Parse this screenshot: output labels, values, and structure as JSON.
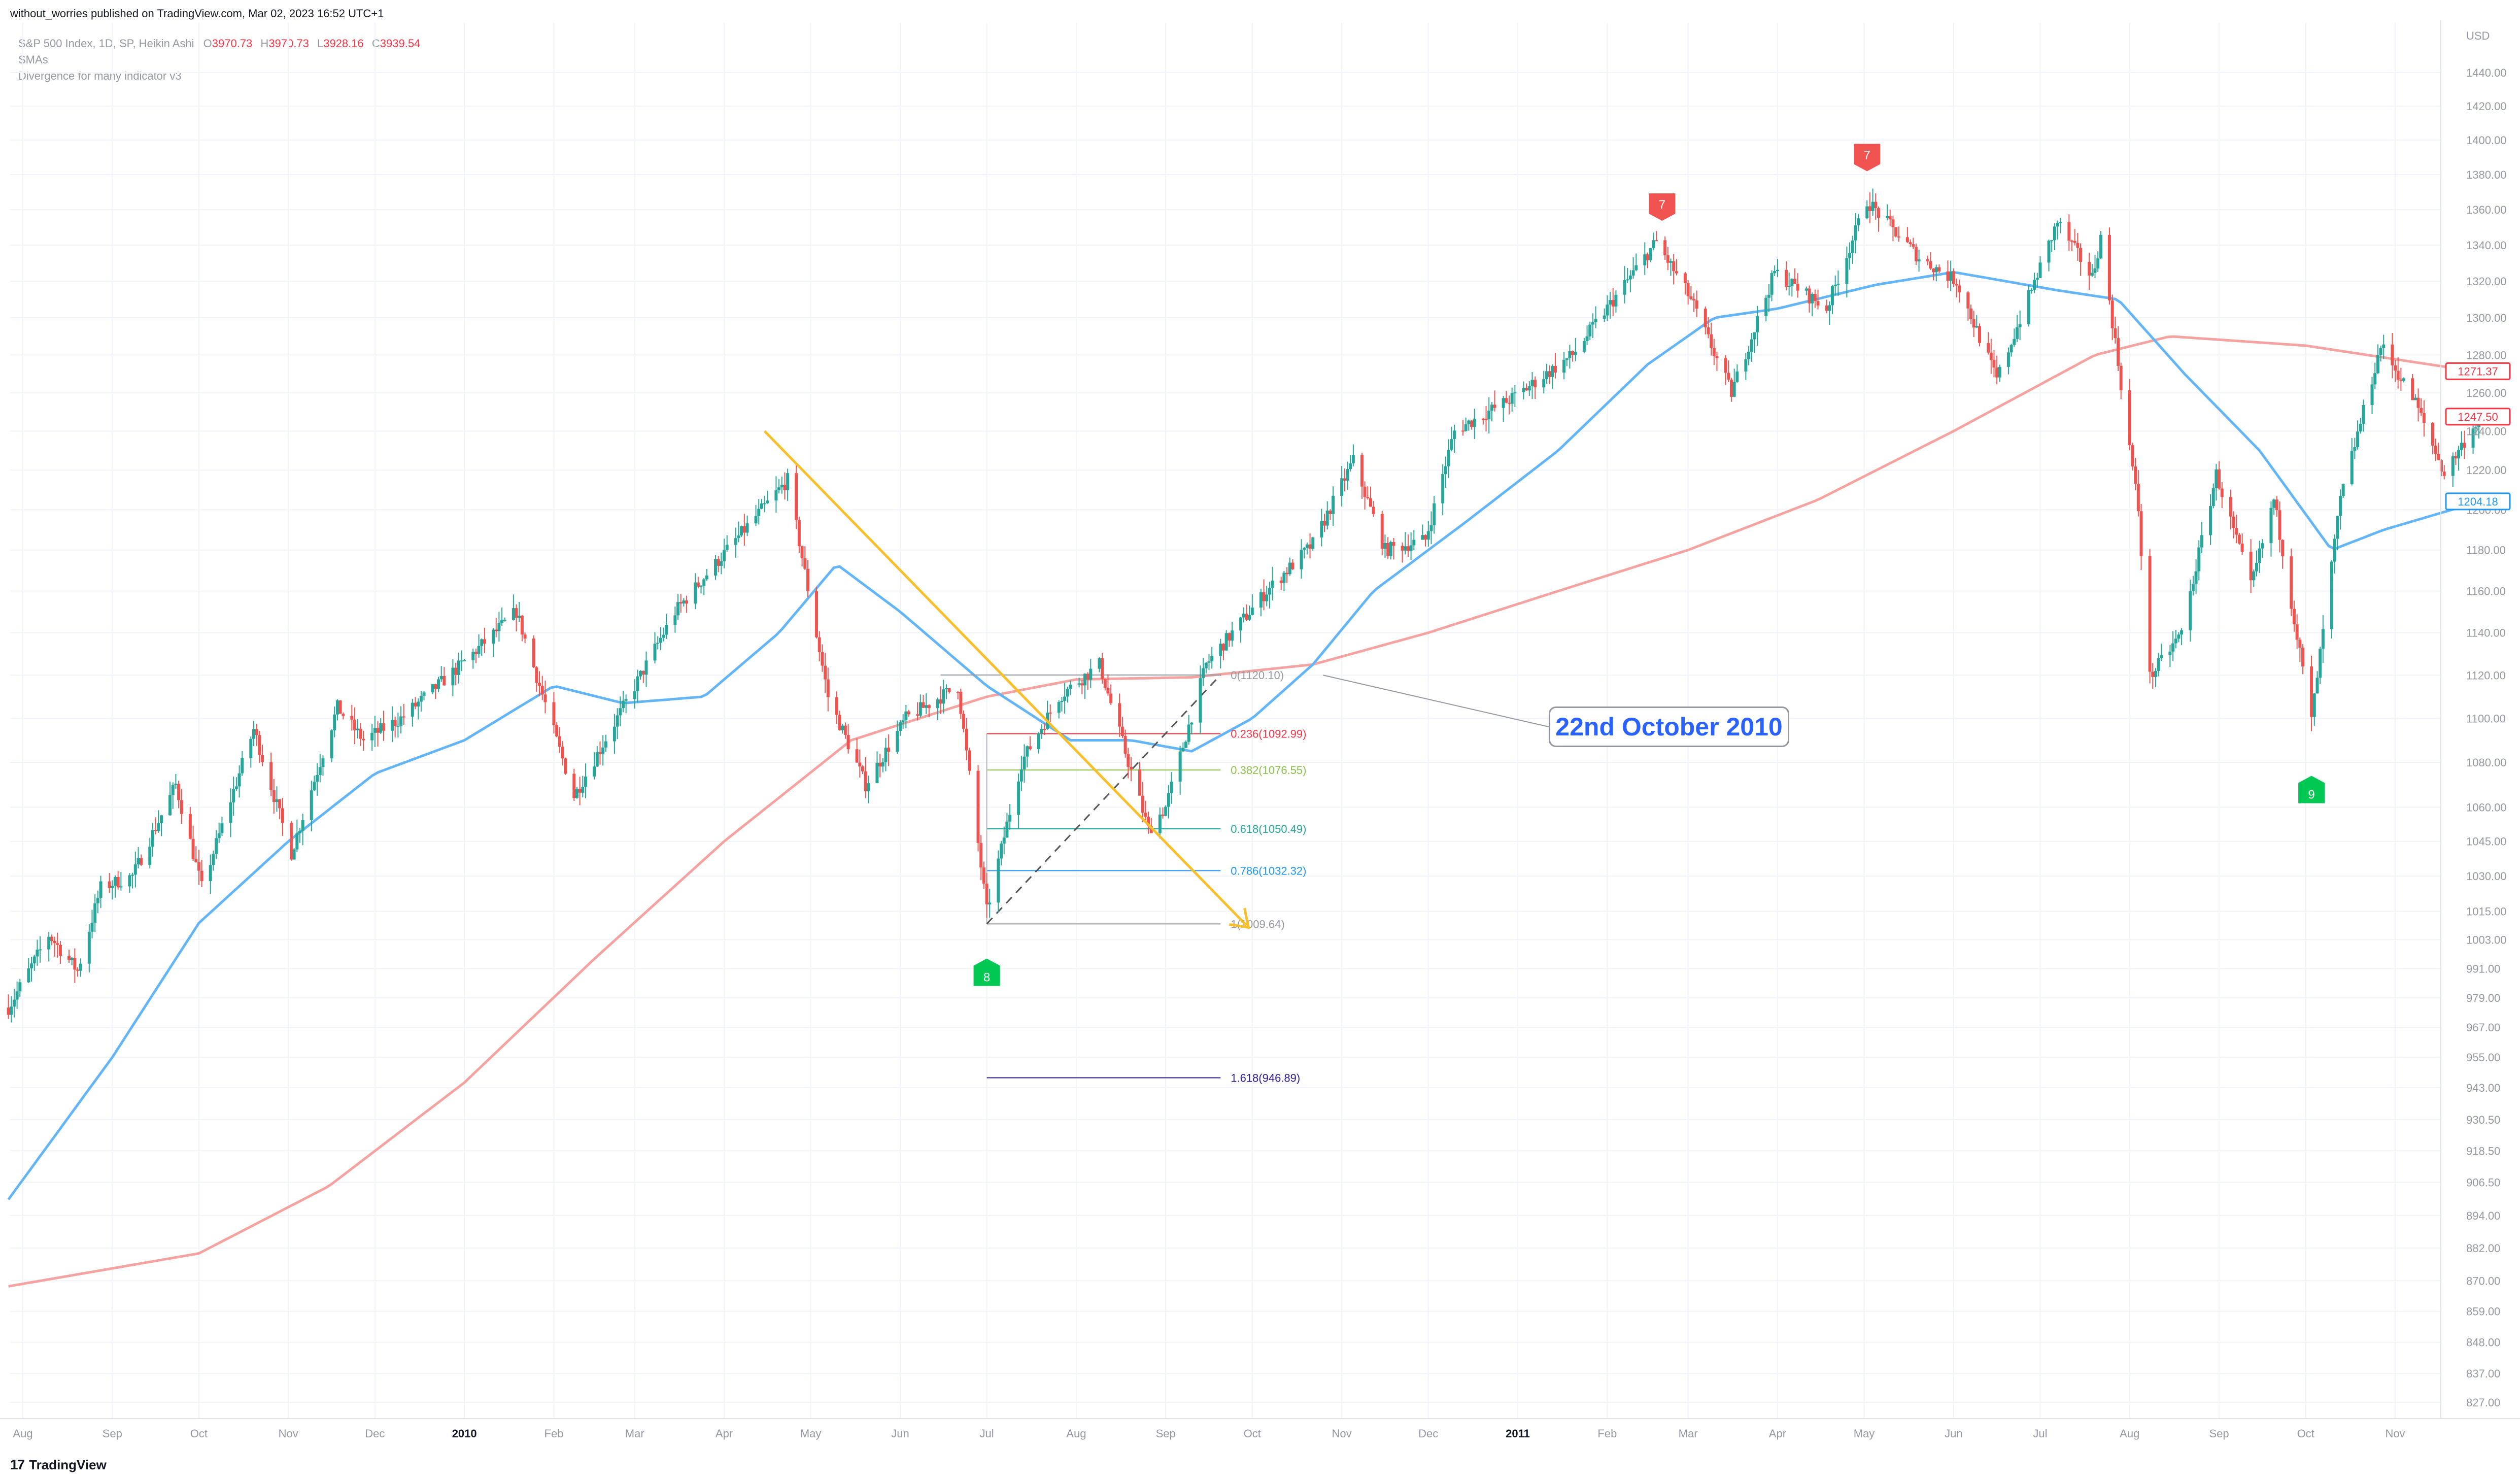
{
  "caption": "without_worries published on TradingView.com, Mar 02, 2023 16:52 UTC+1",
  "legend": {
    "symbol": "S&P 500 Index, 1D, SP, Heikin Ashi",
    "ohlc": [
      {
        "key": "O",
        "value": "3970.73"
      },
      {
        "key": "H",
        "value": "3970.73"
      },
      {
        "key": "L",
        "value": "3928.16"
      },
      {
        "key": "C",
        "value": "3939.54"
      }
    ],
    "line2": "SMAs",
    "line3": "Divergence for many indicator v3"
  },
  "brand": {
    "logo": "17",
    "name": "TradingView"
  },
  "callout": "22nd October 2010",
  "colors": {
    "up": "#26a69a",
    "down": "#ef5350",
    "sma_fast": "#64b5f6",
    "sma_slow": "#f4a3a0",
    "trendline": "#f9bf2b",
    "grid": "#f0f3fa",
    "axis_text": "#9598a1"
  },
  "chart_data": {
    "type": "candlestick",
    "title": "S&P 500 Index, 1D, SP, Heikin Ashi",
    "y_axis": {
      "unit": "USD",
      "ticks": [
        1440,
        1420,
        1400,
        1380,
        1360,
        1340,
        1320,
        1300,
        1280,
        1260,
        1240,
        1220,
        1200,
        1180,
        1160,
        1140,
        1120,
        1100,
        1080,
        1060,
        1045,
        1030,
        1015,
        1003,
        991,
        979,
        967,
        955,
        943,
        930.5,
        918.5,
        906.5,
        894,
        882,
        870,
        859,
        848,
        837,
        827
      ],
      "tick_labels": [
        "1440.00",
        "1420.00",
        "1400.00",
        "1380.00",
        "1360.00",
        "1340.00",
        "1320.00",
        "1300.00",
        "1280.00",
        "1260.00",
        "1240.00",
        "1220.00",
        "1200.00",
        "1180.00",
        "1160.00",
        "1140.00",
        "1120.00",
        "1100.00",
        "1080.00",
        "1060.00",
        "1045.00",
        "1030.00",
        "1015.00",
        "1003.00",
        "991.00",
        "979.00",
        "967.00",
        "955.00",
        "943.00",
        "930.50",
        "918.50",
        "906.50",
        "894.00",
        "882.00",
        "870.00",
        "859.00",
        "848.00",
        "837.00",
        "827.00"
      ],
      "scale": "log"
    },
    "x_axis": {
      "labels": [
        "Aug",
        "Sep",
        "Oct",
        "Nov",
        "Dec",
        "2010",
        "Feb",
        "Mar",
        "Apr",
        "May",
        "Jun",
        "Jul",
        "Aug",
        "Sep",
        "Oct",
        "Nov",
        "Dec",
        "2011",
        "Feb",
        "Mar",
        "Apr",
        "May",
        "Jun",
        "Jul",
        "Aug",
        "Sep",
        "Oct",
        "Nov"
      ],
      "bold": [
        "2010",
        "2011"
      ],
      "range": [
        "2009-08-01",
        "2011-11-30"
      ]
    },
    "price_path": [
      [
        "2009-07-27",
        975
      ],
      [
        "2009-08-10",
        1005
      ],
      [
        "2009-08-20",
        990
      ],
      [
        "2009-08-28",
        1025
      ],
      [
        "2009-09-08",
        1030
      ],
      [
        "2009-09-23",
        1070
      ],
      [
        "2009-10-02",
        1025
      ],
      [
        "2009-10-20",
        1095
      ],
      [
        "2009-11-02",
        1040
      ],
      [
        "2009-11-18",
        1105
      ],
      [
        "2009-11-27",
        1090
      ],
      [
        "2009-12-10",
        1100
      ],
      [
        "2009-12-31",
        1125
      ],
      [
        "2010-01-19",
        1150
      ],
      [
        "2010-02-08",
        1065
      ],
      [
        "2010-02-25",
        1105
      ],
      [
        "2010-03-15",
        1150
      ],
      [
        "2010-04-05",
        1185
      ],
      [
        "2010-04-23",
        1215
      ],
      [
        "2010-05-07",
        1110
      ],
      [
        "2010-05-20",
        1070
      ],
      [
        "2010-06-03",
        1100
      ],
      [
        "2010-06-21",
        1115
      ],
      [
        "2010-07-01",
        1015
      ],
      [
        "2010-07-13",
        1080
      ],
      [
        "2010-07-26",
        1110
      ],
      [
        "2010-08-09",
        1125
      ],
      [
        "2010-08-26",
        1050
      ],
      [
        "2010-09-01",
        1060
      ],
      [
        "2010-09-15",
        1125
      ],
      [
        "2010-10-06",
        1160
      ],
      [
        "2010-10-22",
        1183
      ],
      [
        "2010-11-05",
        1225
      ],
      [
        "2010-11-16",
        1180
      ],
      [
        "2010-11-30",
        1185
      ],
      [
        "2010-12-10",
        1240
      ],
      [
        "2010-12-31",
        1258
      ],
      [
        "2011-01-20",
        1280
      ],
      [
        "2011-02-18",
        1342
      ],
      [
        "2011-03-02",
        1310
      ],
      [
        "2011-03-16",
        1260
      ],
      [
        "2011-03-31",
        1325
      ],
      [
        "2011-04-18",
        1305
      ],
      [
        "2011-05-02",
        1365
      ],
      [
        "2011-05-20",
        1333
      ],
      [
        "2011-06-02",
        1320
      ],
      [
        "2011-06-16",
        1267
      ],
      [
        "2011-07-07",
        1353
      ],
      [
        "2011-07-19",
        1322
      ],
      [
        "2011-07-22",
        1344
      ],
      [
        "2011-08-04",
        1200
      ],
      [
        "2011-08-08",
        1119
      ],
      [
        "2011-08-19",
        1140
      ],
      [
        "2011-08-31",
        1218
      ],
      [
        "2011-09-12",
        1162
      ],
      [
        "2011-09-20",
        1205
      ],
      [
        "2011-10-03",
        1099
      ],
      [
        "2011-10-13",
        1205
      ],
      [
        "2011-10-27",
        1285
      ],
      [
        "2011-11-08",
        1255
      ],
      [
        "2011-11-18",
        1218
      ],
      [
        "2011-11-30",
        1247
      ]
    ],
    "sma_fast": [
      [
        "2009-07-27",
        900
      ],
      [
        "2009-09-01",
        955
      ],
      [
        "2009-10-01",
        1010
      ],
      [
        "2009-11-01",
        1045
      ],
      [
        "2009-12-01",
        1075
      ],
      [
        "2010-01-01",
        1090
      ],
      [
        "2010-02-01",
        1115
      ],
      [
        "2010-02-25",
        1107
      ],
      [
        "2010-03-25",
        1110
      ],
      [
        "2010-04-20",
        1140
      ],
      [
        "2010-05-10",
        1173
      ],
      [
        "2010-06-01",
        1150
      ],
      [
        "2010-07-01",
        1115
      ],
      [
        "2010-07-30",
        1090
      ],
      [
        "2010-08-20",
        1090
      ],
      [
        "2010-09-10",
        1085
      ],
      [
        "2010-10-01",
        1100
      ],
      [
        "2010-10-22",
        1125
      ],
      [
        "2010-11-12",
        1160
      ],
      [
        "2010-12-15",
        1195
      ],
      [
        "2011-01-15",
        1230
      ],
      [
        "2011-02-15",
        1275
      ],
      [
        "2011-03-10",
        1300
      ],
      [
        "2011-04-01",
        1305
      ],
      [
        "2011-05-05",
        1318
      ],
      [
        "2011-06-01",
        1325
      ],
      [
        "2011-07-07",
        1315
      ],
      [
        "2011-07-28",
        1310
      ],
      [
        "2011-08-20",
        1270
      ],
      [
        "2011-09-15",
        1230
      ],
      [
        "2011-10-10",
        1180
      ],
      [
        "2011-10-28",
        1190
      ],
      [
        "2011-11-30",
        1204
      ]
    ],
    "sma_slow": [
      [
        "2009-07-27",
        868
      ],
      [
        "2009-10-01",
        880
      ],
      [
        "2009-11-15",
        905
      ],
      [
        "2010-01-01",
        945
      ],
      [
        "2010-02-15",
        995
      ],
      [
        "2010-04-01",
        1045
      ],
      [
        "2010-05-15",
        1090
      ],
      [
        "2010-07-01",
        1110
      ],
      [
        "2010-08-01",
        1118
      ],
      [
        "2010-09-10",
        1119
      ],
      [
        "2010-10-22",
        1125
      ],
      [
        "2010-12-01",
        1140
      ],
      [
        "2011-01-15",
        1160
      ],
      [
        "2011-03-01",
        1180
      ],
      [
        "2011-04-15",
        1205
      ],
      [
        "2011-06-01",
        1240
      ],
      [
        "2011-07-20",
        1280
      ],
      [
        "2011-08-15",
        1290
      ],
      [
        "2011-10-01",
        1285
      ],
      [
        "2011-11-30",
        1271
      ]
    ],
    "last_values": [
      {
        "label": "1271.37",
        "value": 1271.37,
        "color": "#f23645"
      },
      {
        "label": "1247.50",
        "value": 1247.5,
        "color": "#f23645"
      },
      {
        "label": "1204.18",
        "value": 1204.18,
        "color": "#2196f3"
      }
    ],
    "fibonacci": {
      "levels": [
        {
          "label": "0(1120.10)",
          "value": 1120.1,
          "color": "#9598a1"
        },
        {
          "label": "0.236(1092.99)",
          "value": 1092.99,
          "color": "#f23645"
        },
        {
          "label": "0.382(1076.55)",
          "value": 1076.55,
          "color": "#8bc34a"
        },
        {
          "label": "0.618(1050.49)",
          "value": 1050.49,
          "color": "#26a69a"
        },
        {
          "label": "0.786(1032.32)",
          "value": 1032.32,
          "color": "#2196f3"
        },
        {
          "label": "1(1009.64)",
          "value": 1009.64,
          "color": "#9598a1"
        },
        {
          "label": "1.618(946.89)",
          "value": 946.89,
          "color": "#311b92"
        }
      ],
      "anchor_low": [
        "2010-07-01",
        1009.64
      ],
      "anchor_high": [
        "2010-09-20",
        1120.1
      ]
    },
    "trendline": {
      "from": [
        "2010-04-15",
        1240
      ],
      "to": [
        "2010-09-29",
        1009
      ]
    },
    "signals": [
      {
        "label": "7",
        "date": "2011-02-20",
        "price": 1342,
        "kind": "bearish"
      },
      {
        "label": "7",
        "date": "2011-05-02",
        "price": 1370,
        "kind": "bearish"
      },
      {
        "label": "8",
        "date": "2010-07-01",
        "price": 1010,
        "kind": "bullish"
      },
      {
        "label": "9",
        "date": "2011-10-03",
        "price": 1090,
        "kind": "bullish"
      }
    ],
    "callout_target": [
      "2010-10-22",
      1120
    ]
  }
}
